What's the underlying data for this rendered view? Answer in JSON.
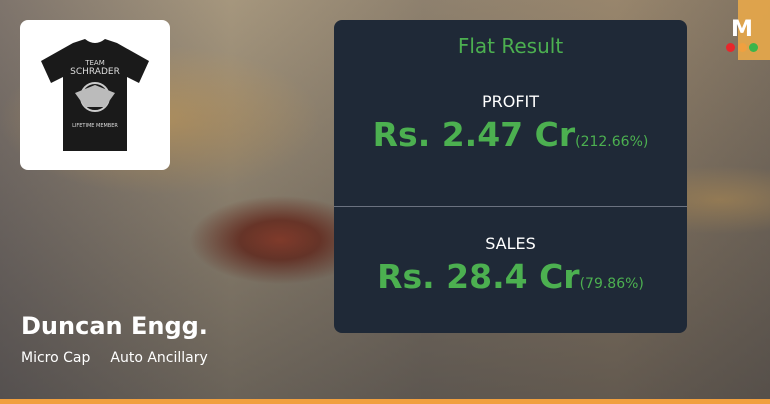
{
  "brand": {
    "logo_letter": "M",
    "dot_colors": [
      "#e8262b",
      "#f0a040",
      "#3cb54a"
    ]
  },
  "company": {
    "name": "Duncan Engg.",
    "cap": "Micro Cap",
    "industry": "Auto Ancillary"
  },
  "thumbnail": {
    "shirt_text": [
      "TEAM",
      "SCHRADER",
      "LIFETIME MEMBER"
    ]
  },
  "result": {
    "title": "Flat Result",
    "profit": {
      "label": "PROFIT",
      "value": "Rs. 2.47 Cr",
      "change": "(212.66%)"
    },
    "sales": {
      "label": "SALES",
      "value": "Rs. 28.4 Cr",
      "change": "(79.86%)"
    }
  },
  "colors": {
    "accent": "#4cb050",
    "panel": "#1f2937",
    "bar": "#f0a040"
  }
}
